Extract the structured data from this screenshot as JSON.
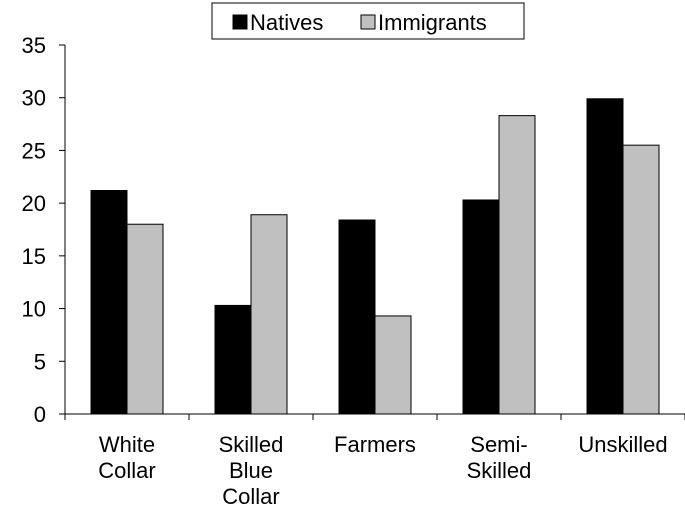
{
  "chart_data": {
    "type": "bar",
    "categories": [
      [
        "White",
        "Collar"
      ],
      [
        "Skilled",
        "Blue",
        "Collar"
      ],
      [
        "Farmers"
      ],
      [
        "Semi-",
        "Skilled"
      ],
      [
        "Unskilled"
      ]
    ],
    "series": [
      {
        "name": "Natives",
        "color": "#000000",
        "values": [
          21.2,
          10.3,
          18.4,
          20.3,
          29.9
        ]
      },
      {
        "name": "Immigrants",
        "color": "#c0c0c0",
        "values": [
          18.0,
          18.9,
          9.3,
          28.3,
          25.5
        ]
      }
    ],
    "ylim": [
      0,
      35
    ],
    "yticks": [
      0,
      5,
      10,
      15,
      20,
      25,
      30,
      35
    ],
    "grid": false,
    "legend_position": "top-center"
  }
}
